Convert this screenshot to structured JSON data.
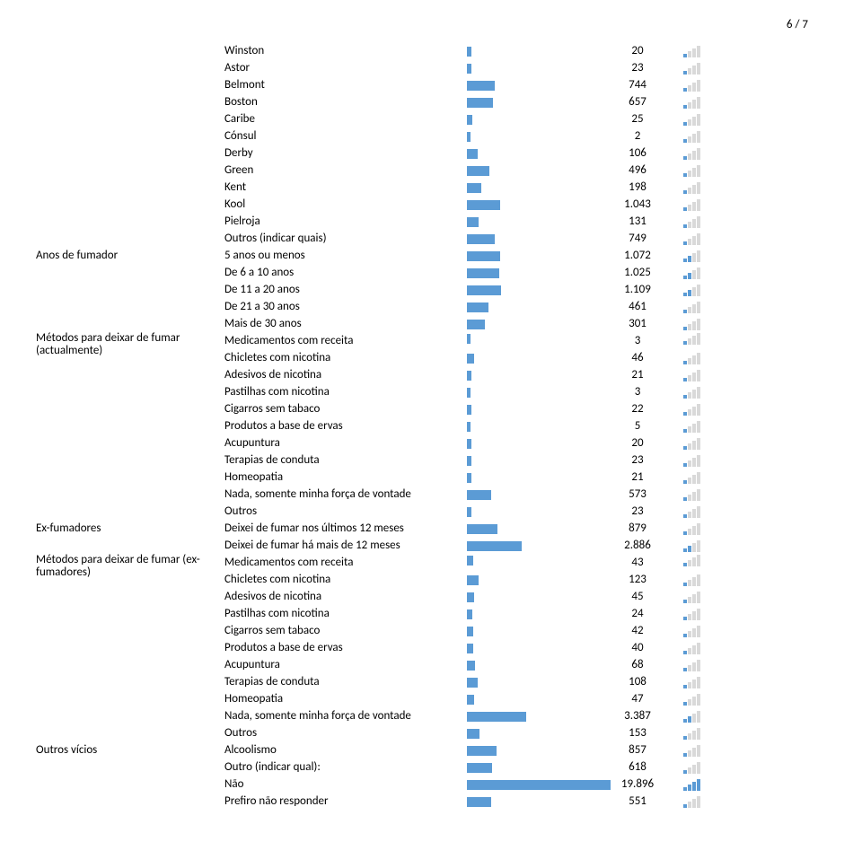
{
  "page_number": "6 / 7",
  "bar_color": "#5b9bd5",
  "signal_on_color": "#5b9bd5",
  "signal_off_color": "#d9d9d9",
  "max_value": 19896,
  "sections": [
    {
      "category": "",
      "rows": [
        {
          "label": "Winston",
          "value": 20,
          "display": "20",
          "signal": 1
        },
        {
          "label": "Astor",
          "value": 23,
          "display": "23",
          "signal": 1
        },
        {
          "label": "Belmont",
          "value": 744,
          "display": "744",
          "signal": 1
        },
        {
          "label": "Boston",
          "value": 657,
          "display": "657",
          "signal": 1
        },
        {
          "label": "Caribe",
          "value": 25,
          "display": "25",
          "signal": 1
        },
        {
          "label": "Cónsul",
          "value": 2,
          "display": "2",
          "signal": 1
        },
        {
          "label": "Derby",
          "value": 106,
          "display": "106",
          "signal": 1
        },
        {
          "label": "Green",
          "value": 496,
          "display": "496",
          "signal": 1
        },
        {
          "label": "Kent",
          "value": 198,
          "display": "198",
          "signal": 1
        },
        {
          "label": "Kool",
          "value": 1043,
          "display": "1.043",
          "signal": 1
        },
        {
          "label": "Pielroja",
          "value": 131,
          "display": "131",
          "signal": 1
        },
        {
          "label": "Outros (indicar quais)",
          "value": 749,
          "display": "749",
          "signal": 1
        }
      ]
    },
    {
      "category": "Anos de fumador",
      "rows": [
        {
          "label": "5 anos ou menos",
          "value": 1072,
          "display": "1.072",
          "signal": 2
        },
        {
          "label": "De 6 a 10 anos",
          "value": 1025,
          "display": "1.025",
          "signal": 2
        },
        {
          "label": "De 11 a 20 anos",
          "value": 1109,
          "display": "1.109",
          "signal": 2
        },
        {
          "label": "De 21 a 30 anos",
          "value": 461,
          "display": "461",
          "signal": 1
        },
        {
          "label": "Mais de 30 anos",
          "value": 301,
          "display": "301",
          "signal": 1
        }
      ]
    },
    {
      "category": "Métodos para deixar de fumar (actualmente)",
      "rows": [
        {
          "label": "Medicamentos com receita",
          "value": 3,
          "display": "3",
          "signal": 1
        },
        {
          "label": "Chicletes com nicotina",
          "value": 46,
          "display": "46",
          "signal": 1
        },
        {
          "label": "Adesivos de nicotina",
          "value": 21,
          "display": "21",
          "signal": 1
        },
        {
          "label": "Pastilhas com nicotina",
          "value": 3,
          "display": "3",
          "signal": 1
        },
        {
          "label": "Cigarros sem tabaco",
          "value": 22,
          "display": "22",
          "signal": 1
        },
        {
          "label": "Produtos a base de ervas",
          "value": 5,
          "display": "5",
          "signal": 1
        },
        {
          "label": "Acupuntura",
          "value": 20,
          "display": "20",
          "signal": 1
        },
        {
          "label": "Terapias de conduta",
          "value": 23,
          "display": "23",
          "signal": 1
        },
        {
          "label": "Homeopatia",
          "value": 21,
          "display": "21",
          "signal": 1
        },
        {
          "label": "Nada, somente minha força de vontade",
          "value": 573,
          "display": "573",
          "signal": 1
        },
        {
          "label": "Outros",
          "value": 23,
          "display": "23",
          "signal": 1
        }
      ]
    },
    {
      "category": "Ex-fumadores",
      "rows": [
        {
          "label": "Deixei de fumar nos últimos 12 meses",
          "value": 879,
          "display": "879",
          "signal": 1
        },
        {
          "label": "Deixei de fumar há mais de 12 meses",
          "value": 2886,
          "display": "2.886",
          "signal": 2
        }
      ]
    },
    {
      "category": "Métodos para deixar de fumar (ex-fumadores)",
      "rows": [
        {
          "label": "Medicamentos com receita",
          "value": 43,
          "display": "43",
          "signal": 1
        },
        {
          "label": "Chicletes com nicotina",
          "value": 123,
          "display": "123",
          "signal": 1
        },
        {
          "label": "Adesivos de nicotina",
          "value": 45,
          "display": "45",
          "signal": 1
        },
        {
          "label": "Pastilhas com nicotina",
          "value": 24,
          "display": "24",
          "signal": 1
        },
        {
          "label": "Cigarros sem tabaco",
          "value": 42,
          "display": "42",
          "signal": 1
        },
        {
          "label": "Produtos a base de ervas",
          "value": 40,
          "display": "40",
          "signal": 1
        },
        {
          "label": "Acupuntura",
          "value": 68,
          "display": "68",
          "signal": 1
        },
        {
          "label": "Terapias de conduta",
          "value": 108,
          "display": "108",
          "signal": 1
        },
        {
          "label": "Homeopatia",
          "value": 47,
          "display": "47",
          "signal": 1
        },
        {
          "label": "Nada, somente minha força de vontade",
          "value": 3387,
          "display": "3.387",
          "signal": 2
        },
        {
          "label": "Outros",
          "value": 153,
          "display": "153",
          "signal": 1
        }
      ]
    },
    {
      "category": "Outros vícios",
      "rows": [
        {
          "label": "Alcoolismo",
          "value": 857,
          "display": "857",
          "signal": 1
        },
        {
          "label": "Outro (indicar qual):",
          "value": 618,
          "display": "618",
          "signal": 1
        },
        {
          "label": "Não",
          "value": 19896,
          "display": "19.896",
          "signal": 4
        },
        {
          "label": "Prefiro não responder",
          "value": 551,
          "display": "551",
          "signal": 1
        }
      ]
    }
  ]
}
